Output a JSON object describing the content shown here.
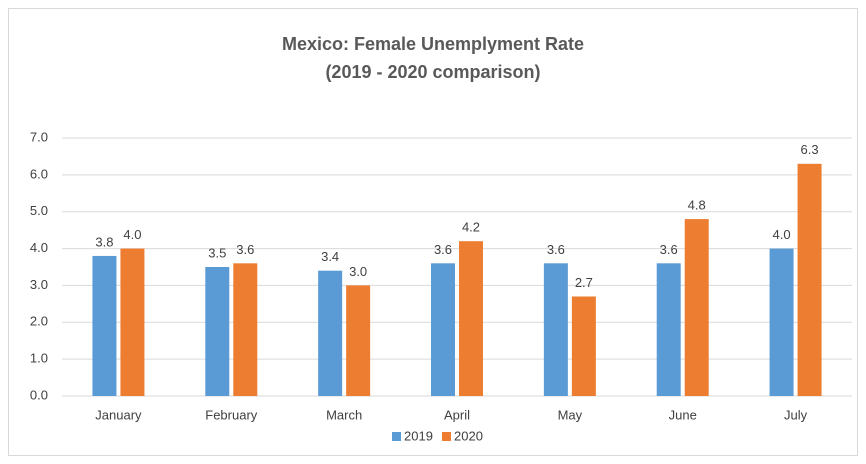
{
  "chart_data": {
    "type": "bar",
    "title": "Mexico: Female Unemplyment Rate",
    "subtitle": "(2019 - 2020 comparison)",
    "categories": [
      "January",
      "February",
      "March",
      "April",
      "May",
      "June",
      "July"
    ],
    "series": [
      {
        "name": "2019",
        "color": "#5b9bd5",
        "values": [
          3.8,
          3.5,
          3.4,
          3.6,
          3.6,
          3.6,
          4.0
        ],
        "value_labels": [
          "3.8",
          "3.5",
          "3.4",
          "3.6",
          "3.6",
          "3.6",
          "4.0"
        ]
      },
      {
        "name": "2020",
        "color": "#ed7d31",
        "values": [
          4.0,
          3.6,
          3.0,
          4.2,
          2.7,
          4.8,
          6.3
        ],
        "value_labels": [
          "4.0",
          "3.6",
          "3.0",
          "4.2",
          "2.7",
          "4.8",
          "6.3"
        ]
      }
    ],
    "ylim": [
      0,
      7
    ],
    "yticks": [
      {
        "value": 0,
        "label": "0.0"
      },
      {
        "value": 1,
        "label": "1.0"
      },
      {
        "value": 2,
        "label": "2.0"
      },
      {
        "value": 3,
        "label": "3.0"
      },
      {
        "value": 4,
        "label": "4.0"
      },
      {
        "value": 5,
        "label": "5.0"
      },
      {
        "value": 6,
        "label": "6.0"
      },
      {
        "value": 7,
        "label": "7.0"
      }
    ],
    "grid": true,
    "legend": "bottom"
  }
}
